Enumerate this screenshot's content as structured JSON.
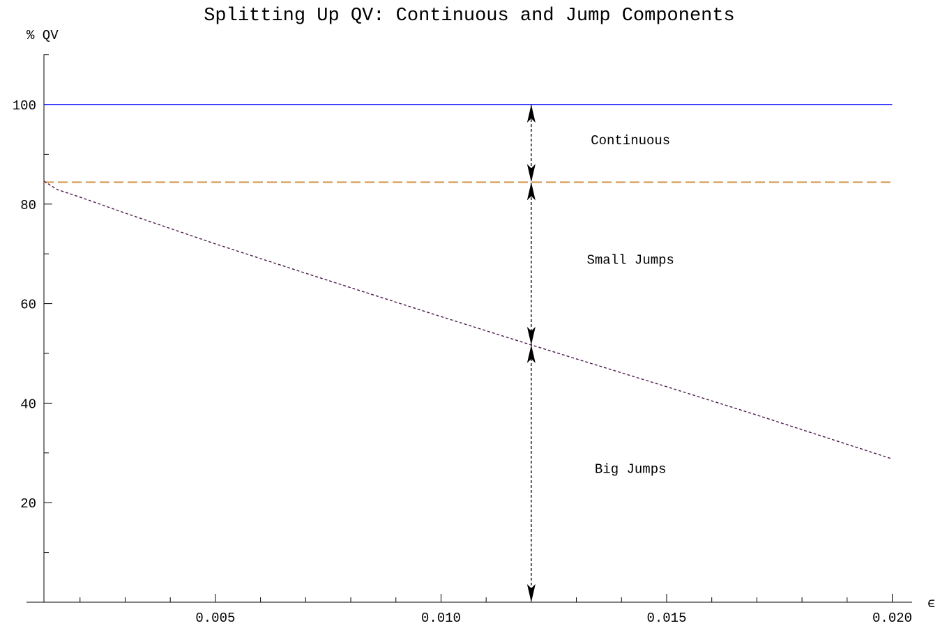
{
  "chart_data": {
    "type": "line",
    "title": "Splitting Up QV: Continuous and Jump Components",
    "xlabel": "ϵ",
    "ylabel": "% QV",
    "xlim": [
      0.0012,
      0.0201
    ],
    "ylim": [
      0,
      110
    ],
    "grid": false,
    "x_ticks": [
      0.005,
      0.01,
      0.015,
      0.02
    ],
    "x_tick_labels": [
      "0.005",
      "0.010",
      "0.015",
      "0.020"
    ],
    "y_ticks": [
      20,
      40,
      60,
      80,
      100
    ],
    "y_tick_labels": [
      "20",
      "40",
      "60",
      "80",
      "100"
    ],
    "series": [
      {
        "style": "solid",
        "color": "#0000ff",
        "x": [
          0.0012,
          0.02
        ],
        "y": [
          100,
          100
        ]
      },
      {
        "style": "dashed",
        "color": "#d2954a",
        "x": [
          0.0012,
          0.02
        ],
        "y": [
          84.4,
          84.4
        ]
      },
      {
        "style": "dotted",
        "color": "#4b1a4b",
        "x": [
          0.0012,
          0.0015,
          0.002,
          0.003,
          0.005,
          0.007,
          0.01,
          0.012,
          0.013,
          0.015,
          0.017,
          0.02
        ],
        "y": [
          84.6,
          82.9,
          81.4,
          78.2,
          72.0,
          66.1,
          57.4,
          51.7,
          48.9,
          43.3,
          37.6,
          28.8
        ]
      }
    ],
    "annotations": [
      {
        "text": "Continuous",
        "x": 0.0142,
        "y": 92
      },
      {
        "text": "Small Jumps",
        "x": 0.0142,
        "y": 68
      },
      {
        "text": "Big Jumps",
        "x": 0.0142,
        "y": 26
      }
    ],
    "marker_x": 0.012,
    "marker_levels": [
      100,
      84.4,
      51.7,
      0
    ]
  }
}
